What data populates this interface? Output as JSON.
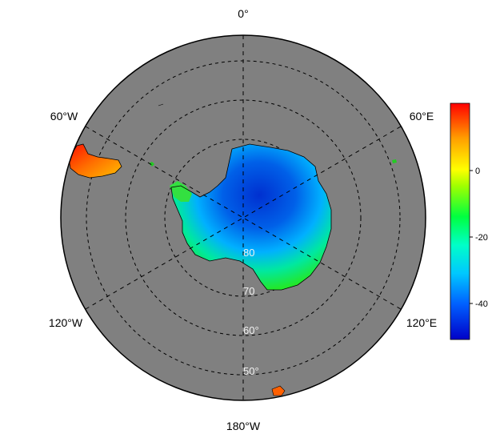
{
  "map": {
    "projection": "south-polar-stereographic",
    "ocean_color": "#808080",
    "meridian_labels": [
      {
        "id": "0",
        "text": "0°"
      },
      {
        "id": "60e",
        "text": "60°E"
      },
      {
        "id": "120e",
        "text": "120°E"
      },
      {
        "id": "180",
        "text": "180°W"
      },
      {
        "id": "120w",
        "text": "120°W"
      },
      {
        "id": "60w",
        "text": "60°W"
      }
    ],
    "latitude_labels": [
      "80",
      "70",
      "60°",
      "50°"
    ],
    "colorbar": {
      "ticks": [
        "0",
        "-20",
        "-40"
      ],
      "range": [
        -50,
        18
      ],
      "colors": [
        "#0000c8",
        "#00a0ff",
        "#00ffe0",
        "#00ff40",
        "#c8ff00",
        "#ffff00",
        "#ffa000",
        "#ff4000",
        "#ff0000"
      ]
    }
  }
}
